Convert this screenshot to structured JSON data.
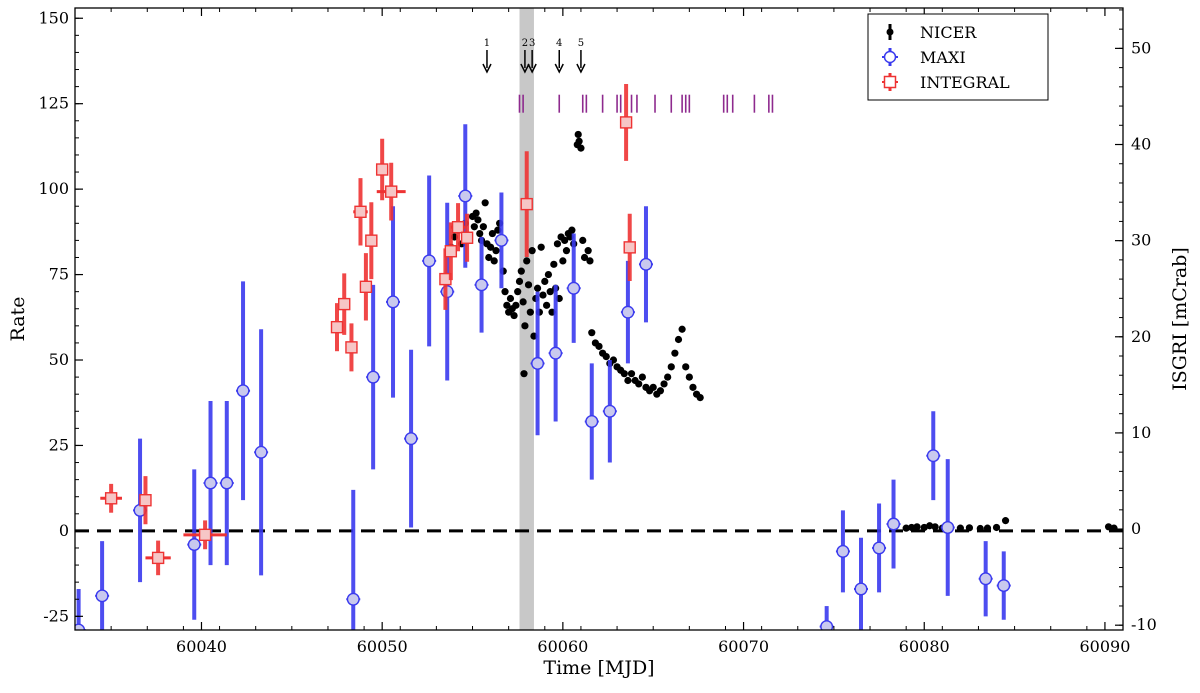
{
  "chart_data": {
    "type": "scatter",
    "xlabel": "Time [MJD]",
    "ylabel_left": "Rate",
    "ylabel_right": "ISGRI [mCrab]",
    "xlim": [
      60033,
      60091
    ],
    "ylim_left": [
      -29,
      153
    ],
    "ylim_right": [
      -10.5,
      54.2
    ],
    "x_ticks": [
      60040,
      60050,
      60060,
      60070,
      60080,
      60090
    ],
    "y_ticks_left": [
      -25,
      0,
      25,
      50,
      75,
      100,
      125,
      150
    ],
    "y_ticks_right": [
      -10,
      0,
      10,
      20,
      30,
      40,
      50
    ],
    "legend_position": "top-right",
    "zero_line": 0,
    "shaded_band": [
      60057.6,
      60058.4
    ],
    "arrows": [
      {
        "label": "1",
        "x": 60055.8
      },
      {
        "label": "2",
        "x": 60057.9
      },
      {
        "label": "3",
        "x": 60058.3
      },
      {
        "label": "4",
        "x": 60059.8
      },
      {
        "label": "5",
        "x": 60061.0
      }
    ],
    "tick_marks_y": 125,
    "tick_marks_x": [
      60057.6,
      60057.8,
      60059.8,
      60061.1,
      60061.3,
      60062.2,
      60063.0,
      60063.2,
      60063.8,
      60064.1,
      60065.1,
      60066.0,
      60066.6,
      60066.8,
      60067.0,
      60068.9,
      60069.1,
      60069.4,
      60070.6,
      60071.4,
      60071.6
    ],
    "series": [
      {
        "name": "NICER",
        "color": "#000000",
        "axis": "left",
        "points": [
          [
            60053.8,
            83
          ],
          [
            60054.0,
            86
          ],
          [
            60054.2,
            88
          ],
          [
            60054.4,
            84
          ],
          [
            60054.6,
            90
          ],
          [
            60054.8,
            86
          ],
          [
            60055.0,
            92
          ],
          [
            60055.1,
            89
          ],
          [
            60055.2,
            93
          ],
          [
            60055.3,
            91
          ],
          [
            60055.4,
            87
          ],
          [
            60055.5,
            85
          ],
          [
            60055.6,
            89
          ],
          [
            60055.7,
            96
          ],
          [
            60055.8,
            84
          ],
          [
            60055.9,
            80
          ],
          [
            60056.0,
            83
          ],
          [
            60056.1,
            87
          ],
          [
            60056.2,
            79
          ],
          [
            60056.3,
            82
          ],
          [
            60056.4,
            88
          ],
          [
            60056.5,
            90
          ],
          [
            60056.6,
            85
          ],
          [
            60056.7,
            76
          ],
          [
            60056.8,
            70
          ],
          [
            60056.9,
            66
          ],
          [
            60057.0,
            64
          ],
          [
            60057.1,
            68
          ],
          [
            60057.2,
            65
          ],
          [
            60057.3,
            63
          ],
          [
            60057.4,
            66
          ],
          [
            60057.5,
            70
          ],
          [
            60057.6,
            73
          ],
          [
            60057.7,
            76
          ],
          [
            60057.8,
            67
          ],
          [
            60057.85,
            46
          ],
          [
            60057.9,
            60
          ],
          [
            60058.0,
            79
          ],
          [
            60058.1,
            72
          ],
          [
            60058.2,
            64
          ],
          [
            60058.3,
            82
          ],
          [
            60058.4,
            57
          ],
          [
            60058.5,
            68
          ],
          [
            60058.6,
            71
          ],
          [
            60058.7,
            64
          ],
          [
            60058.8,
            83
          ],
          [
            60058.9,
            69
          ],
          [
            60059.0,
            73
          ],
          [
            60059.1,
            66
          ],
          [
            60059.2,
            75
          ],
          [
            60059.3,
            70
          ],
          [
            60059.4,
            64
          ],
          [
            60059.5,
            78
          ],
          [
            60059.6,
            71
          ],
          [
            60059.7,
            84
          ],
          [
            60059.8,
            68
          ],
          [
            60059.9,
            86
          ],
          [
            60060.0,
            79
          ],
          [
            60060.1,
            85
          ],
          [
            60060.2,
            82
          ],
          [
            60060.3,
            87
          ],
          [
            60060.4,
            86
          ],
          [
            60060.5,
            88
          ],
          [
            60060.6,
            84
          ],
          [
            60060.8,
            113
          ],
          [
            60060.85,
            116
          ],
          [
            60060.9,
            114
          ],
          [
            60061.0,
            112
          ],
          [
            60061.1,
            85
          ],
          [
            60061.2,
            80
          ],
          [
            60061.4,
            82
          ],
          [
            60061.5,
            79
          ],
          [
            60061.6,
            58
          ],
          [
            60061.8,
            55
          ],
          [
            60062.0,
            54
          ],
          [
            60062.2,
            52
          ],
          [
            60062.4,
            51
          ],
          [
            60062.6,
            49
          ],
          [
            60062.8,
            50
          ],
          [
            60063.0,
            48
          ],
          [
            60063.2,
            47
          ],
          [
            60063.4,
            46
          ],
          [
            60063.6,
            44
          ],
          [
            60063.8,
            46
          ],
          [
            60064.0,
            44
          ],
          [
            60064.2,
            43
          ],
          [
            60064.4,
            45
          ],
          [
            60064.6,
            42
          ],
          [
            60064.8,
            41
          ],
          [
            60065.0,
            42
          ],
          [
            60065.2,
            40
          ],
          [
            60065.4,
            41
          ],
          [
            60065.6,
            43
          ],
          [
            60065.8,
            45
          ],
          [
            60066.0,
            48
          ],
          [
            60066.2,
            52
          ],
          [
            60066.4,
            56
          ],
          [
            60066.6,
            59
          ],
          [
            60066.8,
            48
          ],
          [
            60067.0,
            45
          ],
          [
            60067.2,
            42
          ],
          [
            60067.4,
            40
          ],
          [
            60067.6,
            39
          ],
          [
            60079.0,
            0.8
          ],
          [
            60079.3,
            1.0
          ],
          [
            60079.6,
            1.2
          ],
          [
            60080.0,
            1.0
          ],
          [
            60080.3,
            1.5
          ],
          [
            60080.6,
            1.2
          ],
          [
            60081.0,
            0.8
          ],
          [
            60081.4,
            0.6
          ],
          [
            60082.0,
            0.8
          ],
          [
            60082.5,
            0.9
          ],
          [
            60083.1,
            0.7
          ],
          [
            60083.5,
            0.8
          ],
          [
            60084.0,
            1.0
          ],
          [
            60084.5,
            3.0
          ],
          [
            60090.2,
            1.2
          ],
          [
            60090.5,
            0.8
          ]
        ]
      },
      {
        "name": "MAXI",
        "color": "#3a3aee",
        "axis": "left",
        "points": [
          [
            60033.2,
            -29,
            12
          ],
          [
            60034.5,
            -19,
            16
          ],
          [
            60036.6,
            6,
            21
          ],
          [
            60039.6,
            -4,
            22
          ],
          [
            60040.5,
            14,
            24
          ],
          [
            60041.4,
            14,
            24
          ],
          [
            60042.3,
            41,
            32
          ],
          [
            60043.3,
            23,
            36
          ],
          [
            60048.4,
            -20,
            32
          ],
          [
            60049.5,
            45,
            27
          ],
          [
            60050.6,
            67,
            28
          ],
          [
            60051.6,
            27,
            26
          ],
          [
            60052.6,
            79,
            25
          ],
          [
            60053.6,
            70,
            26
          ],
          [
            60054.6,
            98,
            21
          ],
          [
            60055.5,
            72,
            14
          ],
          [
            60056.6,
            85,
            14
          ],
          [
            60058.6,
            49,
            21
          ],
          [
            60059.6,
            52,
            20
          ],
          [
            60060.6,
            71,
            16
          ],
          [
            60061.6,
            32,
            17
          ],
          [
            60062.6,
            35,
            15
          ],
          [
            60063.6,
            64,
            15
          ],
          [
            60064.6,
            78,
            17
          ],
          [
            60074.6,
            -28,
            6
          ],
          [
            60075.5,
            -6,
            12
          ],
          [
            60076.5,
            -17,
            15
          ],
          [
            60077.5,
            -5,
            13
          ],
          [
            60078.3,
            2,
            13
          ],
          [
            60080.5,
            22,
            13
          ],
          [
            60081.3,
            1,
            20
          ],
          [
            60083.4,
            -14,
            11
          ],
          [
            60084.4,
            -16,
            10
          ]
        ]
      },
      {
        "name": "INTEGRAL",
        "color": "#ee3333",
        "axis": "right",
        "points": [
          [
            60035.0,
            3.2,
            0.6,
            1.5
          ],
          [
            60036.9,
            3.0,
            0.3,
            2.5
          ],
          [
            60037.6,
            -3.0,
            0.7,
            1.8
          ],
          [
            60040.2,
            -0.6,
            1.2,
            1.5
          ],
          [
            60047.5,
            21.0,
            0.3,
            2.5
          ],
          [
            60047.9,
            23.4,
            0.3,
            3.2
          ],
          [
            60048.3,
            18.9,
            0.3,
            2.5
          ],
          [
            60048.8,
            33.0,
            0.4,
            3.5
          ],
          [
            60049.1,
            25.2,
            0.3,
            3.5
          ],
          [
            60049.4,
            30.0,
            0.3,
            4.0
          ],
          [
            60050.0,
            37.4,
            0.3,
            3.2
          ],
          [
            60050.5,
            35.1,
            0.8,
            3.0
          ],
          [
            60053.5,
            26.0,
            0.3,
            3.2
          ],
          [
            60053.8,
            28.9,
            0.3,
            3.0
          ],
          [
            60054.2,
            31.4,
            0.4,
            2.5
          ],
          [
            60054.7,
            30.3,
            0.3,
            2.5
          ],
          [
            60058.0,
            33.8,
            0.3,
            5.5
          ],
          [
            60063.5,
            42.3,
            0.3,
            4.0
          ],
          [
            60063.7,
            29.3,
            0.3,
            3.5
          ]
        ]
      }
    ]
  }
}
